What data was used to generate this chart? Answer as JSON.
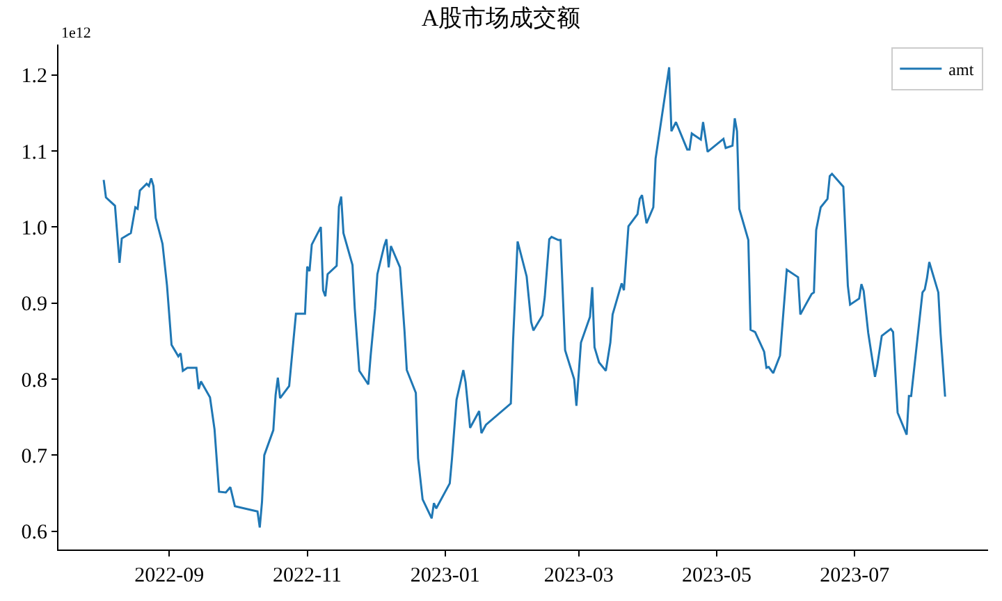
{
  "chart_data": {
    "type": "line",
    "title": "A股市场成交额",
    "annotations": [
      "1e12"
    ],
    "x": [
      "2022-08-03",
      "2022-08-04",
      "2022-08-08",
      "2022-08-10",
      "2022-08-11",
      "2022-08-15",
      "2022-08-17",
      "2022-08-18",
      "2022-08-19",
      "2022-08-22",
      "2022-08-23",
      "2022-08-24",
      "2022-08-25",
      "2022-08-26",
      "2022-08-29",
      "2022-08-31",
      "2022-09-02",
      "2022-09-05",
      "2022-09-06",
      "2022-09-07",
      "2022-09-09",
      "2022-09-13",
      "2022-09-14",
      "2022-09-15",
      "2022-09-19",
      "2022-09-21",
      "2022-09-23",
      "2022-09-26",
      "2022-09-28",
      "2022-09-30",
      "2022-10-10",
      "2022-10-11",
      "2022-10-12",
      "2022-10-13",
      "2022-10-17",
      "2022-10-18",
      "2022-10-19",
      "2022-10-20",
      "2022-10-24",
      "2022-10-27",
      "2022-10-31",
      "2022-11-01",
      "2022-11-02",
      "2022-11-03",
      "2022-11-07",
      "2022-11-08",
      "2022-11-09",
      "2022-11-10",
      "2022-11-14",
      "2022-11-15",
      "2022-11-16",
      "2022-11-17",
      "2022-11-21",
      "2022-11-22",
      "2022-11-24",
      "2022-11-28",
      "2022-11-29",
      "2022-12-01",
      "2022-12-02",
      "2022-12-05",
      "2022-12-06",
      "2022-12-07",
      "2022-12-08",
      "2022-12-12",
      "2022-12-14",
      "2022-12-15",
      "2022-12-19",
      "2022-12-20",
      "2022-12-22",
      "2022-12-26",
      "2022-12-27",
      "2022-12-28",
      "2023-01-03",
      "2023-01-04",
      "2023-01-06",
      "2023-01-09",
      "2023-01-10",
      "2023-01-12",
      "2023-01-16",
      "2023-01-17",
      "2023-01-19",
      "2023-01-30",
      "2023-01-31",
      "2023-02-02",
      "2023-02-06",
      "2023-02-08",
      "2023-02-09",
      "2023-02-13",
      "2023-02-14",
      "2023-02-16",
      "2023-02-17",
      "2023-02-20",
      "2023-02-21",
      "2023-02-23",
      "2023-02-27",
      "2023-02-28",
      "2023-03-02",
      "2023-03-06",
      "2023-03-07",
      "2023-03-08",
      "2023-03-10",
      "2023-03-13",
      "2023-03-15",
      "2023-03-16",
      "2023-03-20",
      "2023-03-21",
      "2023-03-23",
      "2023-03-27",
      "2023-03-28",
      "2023-03-29",
      "2023-03-31",
      "2023-04-03",
      "2023-04-04",
      "2023-04-10",
      "2023-04-11",
      "2023-04-13",
      "2023-04-18",
      "2023-04-19",
      "2023-04-20",
      "2023-04-24",
      "2023-04-25",
      "2023-04-27",
      "2023-05-04",
      "2023-05-05",
      "2023-05-08",
      "2023-05-09",
      "2023-05-10",
      "2023-05-11",
      "2023-05-15",
      "2023-05-16",
      "2023-05-18",
      "2023-05-22",
      "2023-05-23",
      "2023-05-24",
      "2023-05-26",
      "2023-05-29",
      "2023-06-01",
      "2023-06-05",
      "2023-06-06",
      "2023-06-07",
      "2023-06-09",
      "2023-06-12",
      "2023-06-13",
      "2023-06-14",
      "2023-06-16",
      "2023-06-19",
      "2023-06-20",
      "2023-06-21",
      "2023-06-26",
      "2023-06-28",
      "2023-06-29",
      "2023-07-03",
      "2023-07-04",
      "2023-07-05",
      "2023-07-07",
      "2023-07-10",
      "2023-07-11",
      "2023-07-13",
      "2023-07-17",
      "2023-07-18",
      "2023-07-20",
      "2023-07-24",
      "2023-07-25",
      "2023-07-26",
      "2023-07-31",
      "2023-08-01",
      "2023-08-02",
      "2023-08-03",
      "2023-08-07",
      "2023-08-08",
      "2023-08-10"
    ],
    "series": [
      {
        "name": "amt",
        "color": "#1f77b4",
        "values": [
          1.062,
          1.039,
          1.028,
          0.953,
          0.985,
          0.992,
          1.026,
          1.024,
          1.048,
          1.057,
          1.054,
          1.064,
          1.054,
          1.012,
          0.978,
          0.923,
          0.845,
          0.83,
          0.834,
          0.811,
          0.815,
          0.815,
          0.787,
          0.797,
          0.776,
          0.734,
          0.652,
          0.651,
          0.658,
          0.633,
          0.626,
          0.605,
          0.639,
          0.7,
          0.733,
          0.779,
          0.802,
          0.775,
          0.791,
          0.886,
          0.886,
          0.948,
          0.942,
          0.977,
          1.0,
          0.917,
          0.909,
          0.938,
          0.949,
          1.027,
          1.04,
          0.992,
          0.95,
          0.893,
          0.811,
          0.793,
          0.83,
          0.893,
          0.938,
          0.975,
          0.984,
          0.947,
          0.975,
          0.947,
          0.863,
          0.812,
          0.782,
          0.696,
          0.642,
          0.617,
          0.637,
          0.63,
          0.663,
          0.696,
          0.773,
          0.812,
          0.796,
          0.736,
          0.758,
          0.729,
          0.74,
          0.768,
          0.851,
          0.981,
          0.935,
          0.875,
          0.864,
          0.884,
          0.908,
          0.984,
          0.987,
          0.983,
          0.983,
          0.838,
          0.8,
          0.765,
          0.848,
          0.882,
          0.921,
          0.842,
          0.822,
          0.811,
          0.848,
          0.885,
          0.926,
          0.917,
          1.001,
          1.017,
          1.037,
          1.042,
          1.005,
          1.026,
          1.09,
          1.21,
          1.126,
          1.138,
          1.102,
          1.102,
          1.123,
          1.115,
          1.138,
          1.099,
          1.116,
          1.104,
          1.107,
          1.143,
          1.126,
          1.024,
          0.983,
          0.865,
          0.862,
          0.836,
          0.815,
          0.816,
          0.808,
          0.831,
          0.944,
          0.936,
          0.934,
          0.885,
          0.896,
          0.912,
          0.914,
          0.996,
          1.026,
          1.037,
          1.067,
          1.07,
          1.053,
          0.923,
          0.898,
          0.906,
          0.925,
          0.916,
          0.861,
          0.803,
          0.818,
          0.857,
          0.866,
          0.862,
          0.756,
          0.727,
          0.778,
          0.778,
          0.914,
          0.918,
          0.933,
          0.954,
          0.914,
          0.86,
          0.777
        ]
      }
    ],
    "xlim": [
      "2022-07-14",
      "2023-08-29"
    ],
    "xticks": [
      {
        "value": "2022-09-01",
        "label": "2022-09"
      },
      {
        "value": "2022-11-01",
        "label": "2022-11"
      },
      {
        "value": "2023-01-01",
        "label": "2023-01"
      },
      {
        "value": "2023-03-01",
        "label": "2023-03"
      },
      {
        "value": "2023-05-01",
        "label": "2023-05"
      },
      {
        "value": "2023-07-01",
        "label": "2023-07"
      }
    ],
    "ylim": [
      0.576,
      1.24
    ],
    "yticks": [
      {
        "value": 0.6,
        "label": "0.6"
      },
      {
        "value": 0.7,
        "label": "0.7"
      },
      {
        "value": 0.8,
        "label": "0.8"
      },
      {
        "value": 0.9,
        "label": "0.9"
      },
      {
        "value": 1.0,
        "label": "1.0"
      },
      {
        "value": 1.1,
        "label": "1.1"
      },
      {
        "value": 1.2,
        "label": "1.2"
      }
    ],
    "legend": "top right",
    "line_style": "solid",
    "marker": "none"
  }
}
